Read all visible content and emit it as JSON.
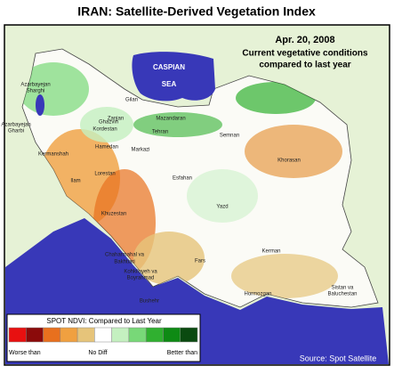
{
  "title": "IRAN: Satellite-Derived Vegetation Index",
  "date": "Apr. 20, 2008",
  "subtitle_lines": [
    "Current vegetative conditions",
    "compared to last year"
  ],
  "sea_label": [
    "CASPIAN",
    "SEA"
  ],
  "map_labels": [
    "Azarbayejan",
    "Sharghi",
    "Azarbayejan",
    "Gharbi",
    "Gilan",
    "Zanjan",
    "Mazandaran",
    "Kordestan",
    "Ghazvin",
    "Tehran",
    "Semnan",
    "Hamedan",
    "Markazi",
    "Kermanshah",
    "Khorasan",
    "Lorestan",
    "Ilam",
    "Esfahan",
    "Yazd",
    "Khuzestan",
    "Chaharmahal va",
    "Bakhtiari",
    "Kohkiloyeh va",
    "Boyrahmad",
    "Bushehr",
    "Fars",
    "Kerman",
    "Hormozgan",
    "Sistan va",
    "Baluchestan"
  ],
  "legend": {
    "title": "SPOT NDVI: Compared to Last Year",
    "colors": [
      "#e81010",
      "#8b0a0a",
      "#e8701e",
      "#f0a040",
      "#e6c47a",
      "#ffffff",
      "#c4f0c0",
      "#78d878",
      "#30b030",
      "#0e8a14",
      "#0a4a10"
    ],
    "labels": [
      "Worse than",
      "No Diff",
      "Better than"
    ]
  },
  "source": "Source: Spot Satellite"
}
